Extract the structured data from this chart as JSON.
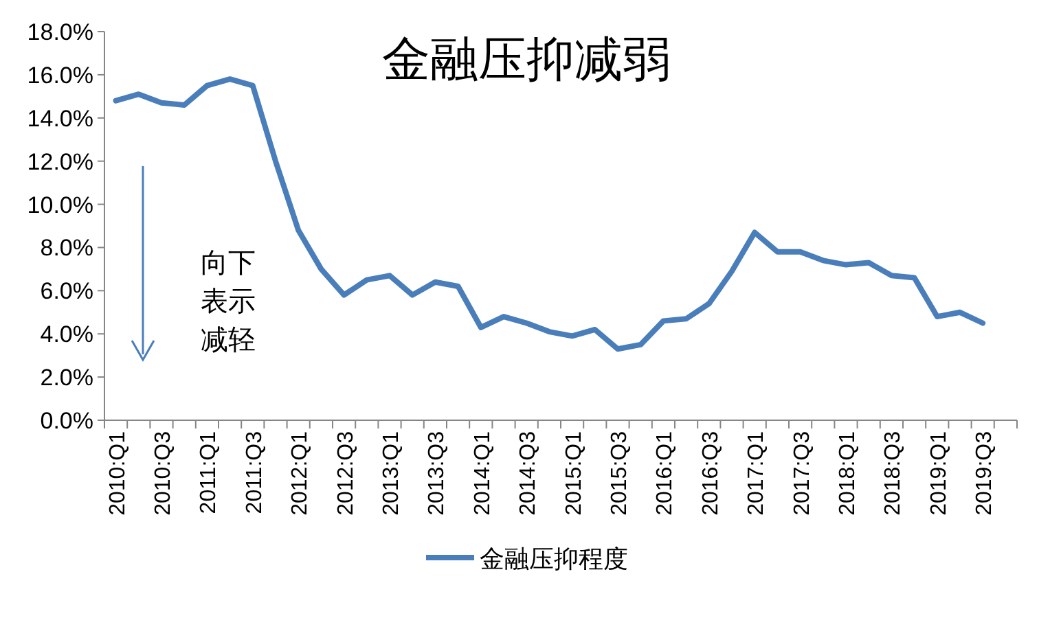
{
  "chart_data": {
    "type": "line",
    "title": "金融压抑减弱",
    "categories": [
      "2010:Q1",
      null,
      "2010:Q3",
      null,
      "2011:Q1",
      null,
      "2011:Q3",
      null,
      "2012:Q1",
      null,
      "2012:Q3",
      null,
      "2013:Q1",
      null,
      "2013:Q3",
      null,
      "2014:Q1",
      null,
      "2014:Q3",
      null,
      "2015:Q1",
      null,
      "2015:Q3",
      null,
      "2016:Q1",
      null,
      "2016:Q3",
      null,
      "2017:Q1",
      null,
      "2017:Q3",
      null,
      "2018:Q1",
      null,
      "2018:Q3",
      null,
      "2019:Q1",
      null,
      "2019:Q3",
      null
    ],
    "series": [
      {
        "name": "金融压抑程度",
        "color": "#4a7ebb",
        "values": [
          14.8,
          15.1,
          14.7,
          14.6,
          15.5,
          15.8,
          15.5,
          12.0,
          8.8,
          7.0,
          5.8,
          6.5,
          6.7,
          5.8,
          6.4,
          6.2,
          4.3,
          4.8,
          4.5,
          4.1,
          3.9,
          4.2,
          3.3,
          3.5,
          4.6,
          4.7,
          5.4,
          6.9,
          8.7,
          7.8,
          7.8,
          7.4,
          7.2,
          7.3,
          6.7,
          6.6,
          4.8,
          5.0,
          4.5,
          null
        ]
      }
    ],
    "ylim": [
      0,
      18
    ],
    "yticks": [
      {
        "value": 0,
        "label": "0.0%"
      },
      {
        "value": 2,
        "label": "2.0%"
      },
      {
        "value": 4,
        "label": "4.0%"
      },
      {
        "value": 6,
        "label": "6.0%"
      },
      {
        "value": 8,
        "label": "8.0%"
      },
      {
        "value": 10,
        "label": "10.0%"
      },
      {
        "value": 12,
        "label": "12.0%"
      },
      {
        "value": 14,
        "label": "14.0%"
      },
      {
        "value": 16,
        "label": "16.0%"
      },
      {
        "value": 18,
        "label": "18.0%"
      }
    ],
    "annotations": [
      "向下表示减轻"
    ],
    "legend": "bottom",
    "grid": false,
    "marker": "none",
    "line_style": "solid"
  }
}
